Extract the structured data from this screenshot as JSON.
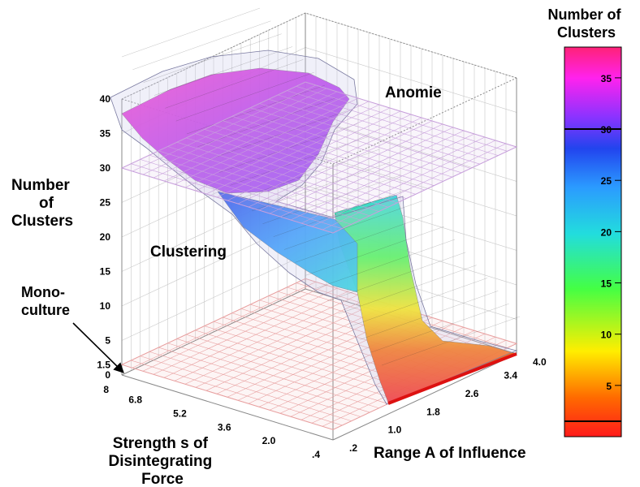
{
  "chart_data": {
    "type": "surface3d",
    "z_axis": {
      "label_lines": [
        "Number",
        "of",
        "Clusters"
      ],
      "ticks": [
        "0",
        "1.5",
        "5",
        "10",
        "15",
        "20",
        "25",
        "30",
        "35",
        "40"
      ],
      "range": [
        0,
        40
      ]
    },
    "x_axis": {
      "label_lines": [
        "Strength s of",
        "Disintegrating",
        "Force"
      ],
      "ticks": [
        "8",
        "6.8",
        "5.2",
        "3.6",
        "2.0",
        ".4"
      ],
      "range": [
        8,
        0.4
      ]
    },
    "y_axis": {
      "label": "Range A of Influence",
      "ticks": [
        ".2",
        "1.0",
        "1.8",
        "2.6",
        "3.4",
        "4.0"
      ],
      "range": [
        0.2,
        4.0
      ]
    },
    "reference_planes": [
      {
        "z": 1.5,
        "color": "#e8a0a0"
      },
      {
        "z": 30,
        "color": "#c8a0dc"
      }
    ],
    "regions": {
      "anomie": "Anomie",
      "clustering": "Clustering",
      "monoculture_lines": [
        "Mono-",
        "culture"
      ]
    },
    "colorbar": {
      "title_lines": [
        "Number of",
        "Clusters"
      ],
      "ticks": [
        "5",
        "10",
        "15",
        "20",
        "25",
        "30",
        "35"
      ],
      "range": [
        0,
        38
      ],
      "markers": [
        1.5,
        30
      ],
      "colors": [
        "#ff1a1a",
        "#ff6a00",
        "#ffee00",
        "#44ff44",
        "#22dddd",
        "#2b9bff",
        "#2244ee",
        "#8a33ff",
        "#ff22ee",
        "#ff2277"
      ]
    }
  }
}
